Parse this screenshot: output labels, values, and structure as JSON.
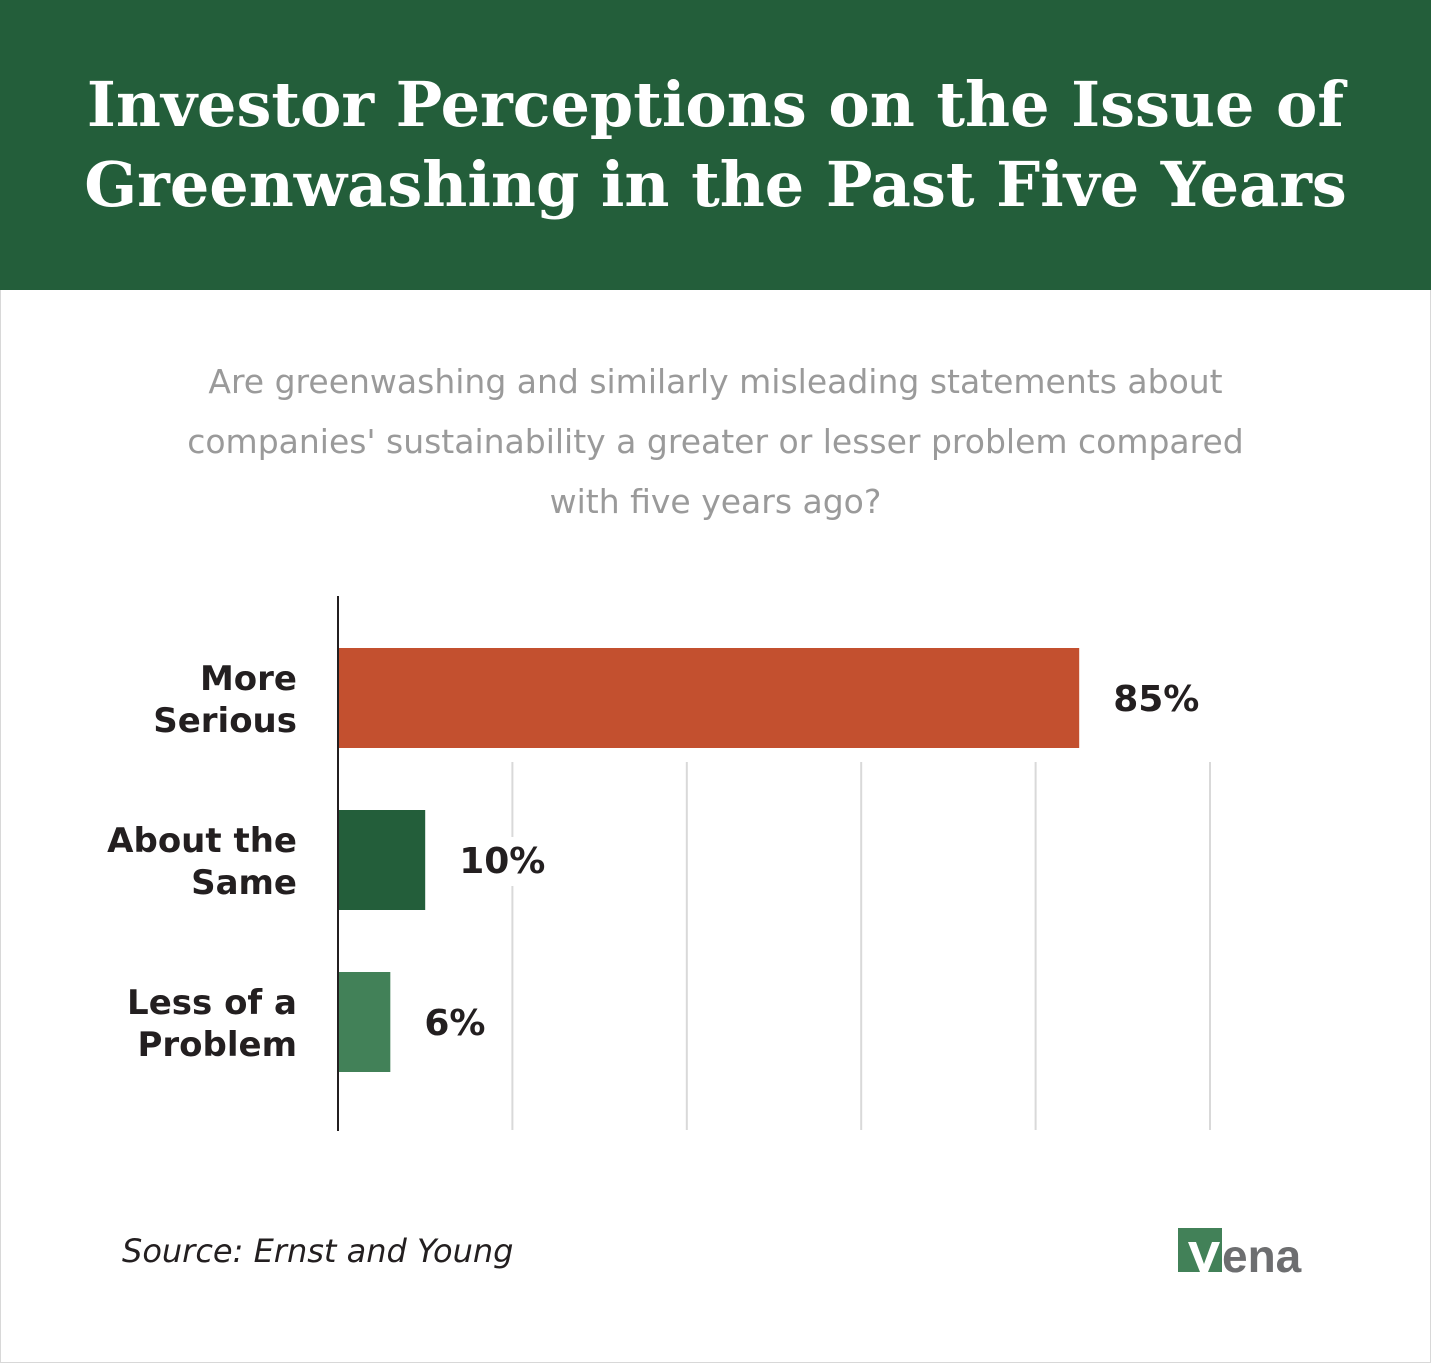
{
  "header": {
    "title": "Investor Perceptions on the Issue of Greenwashing in the Past Five Years",
    "background": "#235e3a"
  },
  "subtitle": "Are greenwashing and similarly misleading statements about companies' sustainability a greater or lesser problem compared with five years ago?",
  "chart_data": {
    "type": "bar",
    "orientation": "horizontal",
    "title": "Investor Perceptions on the Issue of Greenwashing in the Past Five Years",
    "subtitle": "Are greenwashing and similarly misleading statements about companies' sustainability a greater or lesser problem compared with five years ago?",
    "categories": [
      [
        "More",
        "Serious"
      ],
      [
        "About the",
        "Same"
      ],
      [
        "Less of a",
        "Problem"
      ]
    ],
    "values": [
      85,
      10,
      6
    ],
    "labels": [
      "85%",
      "10%",
      "6%"
    ],
    "colors": [
      "#c3502f",
      "#235e3a",
      "#428158"
    ],
    "xlim": [
      0,
      100
    ],
    "grid": true,
    "xlabel": "",
    "ylabel": ""
  },
  "footer": {
    "source": "Source: Ernst and Young",
    "logo_text": "vena"
  }
}
